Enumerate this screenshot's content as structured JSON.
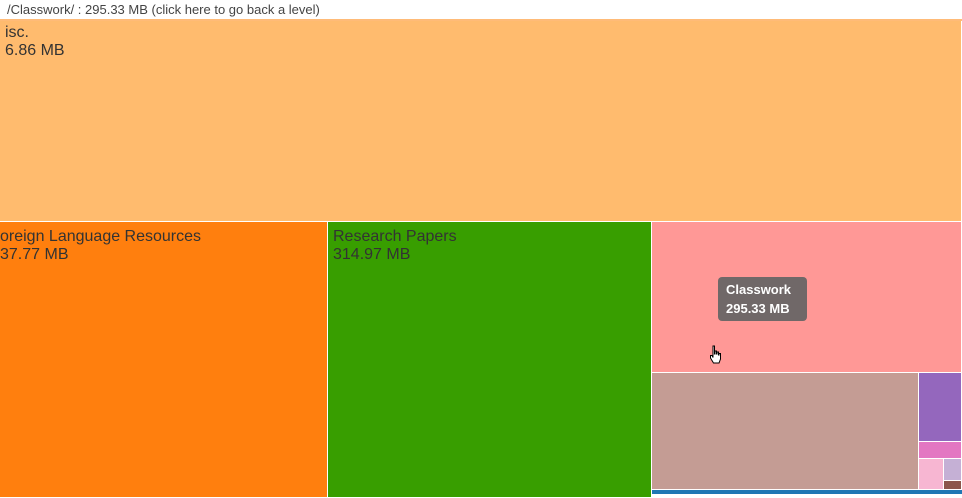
{
  "header": {
    "text": "/Classwork/ : 295.33 MB (click here to go back a level)"
  },
  "cells": {
    "misc": {
      "name": "isc.",
      "size": "6.86 MB",
      "color": "#ffbb6e"
    },
    "foreign": {
      "name": "oreign Language Resources",
      "size": "37.77 MB",
      "color": "#ff7f0e"
    },
    "research": {
      "name": "Research Papers",
      "size": "314.97 MB",
      "color": "#389e00"
    },
    "classwork": {
      "name": "",
      "size": "",
      "color": "#ff9896"
    },
    "small_brown": {
      "color": "#c49c94"
    },
    "small_purple": {
      "color": "#9467bd"
    },
    "small_pink": {
      "color": "#e377c2"
    },
    "small_lightpink": {
      "color": "#f7b6d2"
    },
    "small_lilac": {
      "color": "#c5b0d5"
    },
    "small_darkbrown": {
      "color": "#8c564b"
    },
    "bottom_strip": {
      "color": "#1f77b4"
    }
  },
  "tooltip": {
    "title": "Classwork",
    "size": "295.33 MB"
  },
  "cursor_icon": "hand-pointer-icon"
}
